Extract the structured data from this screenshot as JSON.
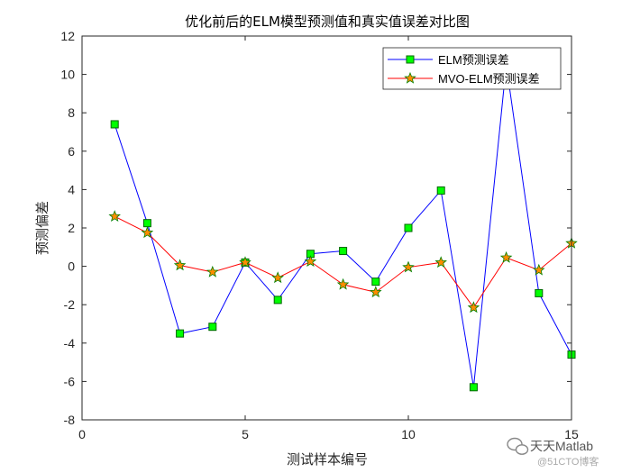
{
  "chart_data": {
    "type": "line",
    "title": "优化前后的ELM模型预测值和真实值误差对比图",
    "xlabel": "测试样本编号",
    "ylabel": "预测偏差",
    "xlim": [
      0,
      15
    ],
    "ylim": [
      -8,
      12
    ],
    "xticks": [
      0,
      5,
      10,
      15
    ],
    "yticks": [
      -8,
      -6,
      -4,
      -2,
      0,
      2,
      4,
      6,
      8,
      10,
      12
    ],
    "grid": false,
    "legend_position": "top-right",
    "x": [
      1,
      2,
      3,
      4,
      5,
      6,
      7,
      8,
      9,
      10,
      11,
      12,
      13,
      14,
      15
    ],
    "series": [
      {
        "name": "ELM预测误差",
        "line_color": "#0000ff",
        "marker": "square",
        "marker_fill": "#00ff00",
        "marker_edge": "#006400",
        "values": [
          7.4,
          2.25,
          -3.5,
          -3.15,
          0.2,
          -1.75,
          0.65,
          0.8,
          -0.8,
          2.0,
          3.95,
          -6.3,
          10.5,
          -1.4,
          -4.6
        ]
      },
      {
        "name": "MVO-ELM预测误差",
        "line_color": "#ff0000",
        "marker": "star",
        "marker_fill": "#ff8c00",
        "marker_edge": "#008000",
        "values": [
          2.6,
          1.75,
          0.05,
          -0.3,
          0.2,
          -0.6,
          0.25,
          -0.95,
          -1.35,
          -0.05,
          0.2,
          -2.15,
          0.45,
          -0.2,
          1.2
        ]
      }
    ]
  },
  "watermark": {
    "brand": "天天Matlab",
    "source": "@51CTO博客"
  }
}
